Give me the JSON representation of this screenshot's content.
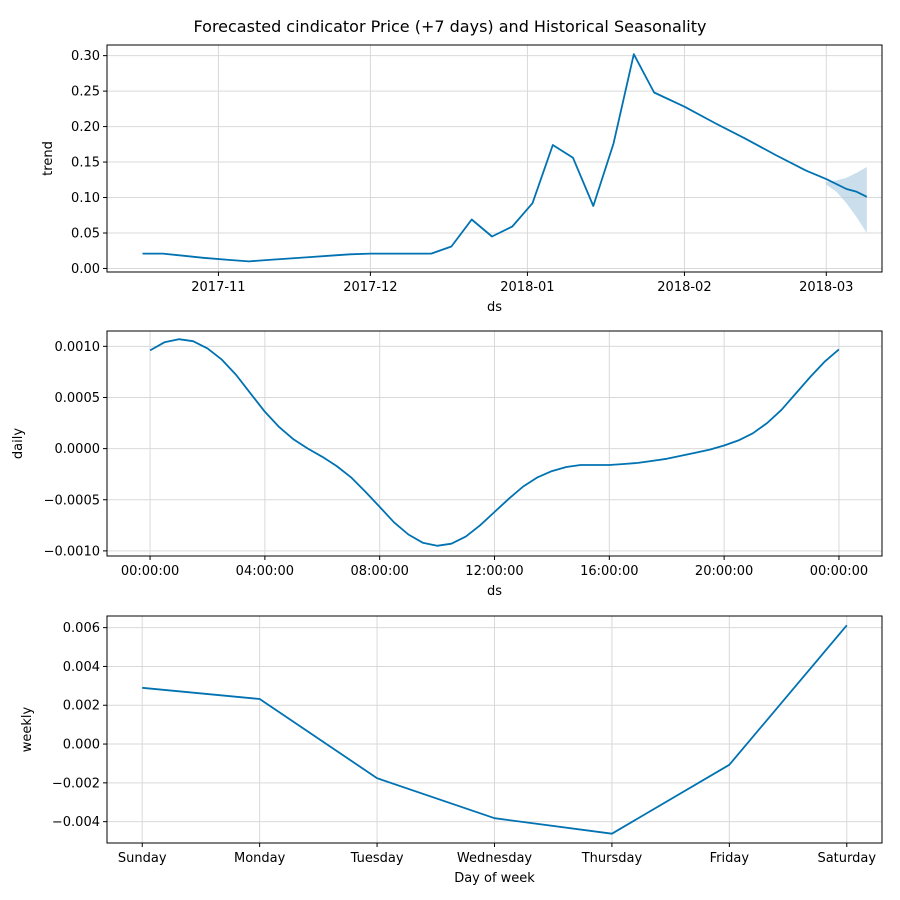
{
  "title": "Forecasted cindicator Price (+7 days) and Historical Seasonality",
  "colors": {
    "series": "#0072b2",
    "band": "#a6c8e0",
    "grid": "#d9d9d9"
  },
  "chart_data": [
    {
      "type": "line",
      "name": "trend",
      "xlabel": "ds",
      "ylabel": "trend",
      "x_type": "date",
      "xlim": [
        "2017-10-10",
        "2018-03-12"
      ],
      "ylim": [
        -0.005,
        0.315
      ],
      "xticks": [
        {
          "x": "2017-11-01",
          "label": "2017-11"
        },
        {
          "x": "2017-12-01",
          "label": "2017-12"
        },
        {
          "x": "2018-01-01",
          "label": "2018-01"
        },
        {
          "x": "2018-02-01",
          "label": "2018-02"
        },
        {
          "x": "2018-03-01",
          "label": "2018-03"
        }
      ],
      "yticks": [
        {
          "y": 0.0,
          "label": "0.00"
        },
        {
          "y": 0.05,
          "label": "0.05"
        },
        {
          "y": 0.1,
          "label": "0.10"
        },
        {
          "y": 0.15,
          "label": "0.15"
        },
        {
          "y": 0.2,
          "label": "0.20"
        },
        {
          "y": 0.25,
          "label": "0.25"
        },
        {
          "y": 0.3,
          "label": "0.30"
        }
      ],
      "grid": true,
      "x": [
        "2017-10-17",
        "2017-10-21",
        "2017-10-25",
        "2017-10-29",
        "2017-11-03",
        "2017-11-07",
        "2017-11-11",
        "2017-11-15",
        "2017-11-19",
        "2017-11-23",
        "2017-11-27",
        "2017-12-01",
        "2017-12-05",
        "2017-12-09",
        "2017-12-13",
        "2017-12-17",
        "2017-12-21",
        "2017-12-25",
        "2017-12-29",
        "2018-01-02",
        "2018-01-06",
        "2018-01-10",
        "2018-01-14",
        "2018-01-18",
        "2018-01-22",
        "2018-01-26",
        "2018-02-01",
        "2018-02-07",
        "2018-02-13",
        "2018-02-19",
        "2018-02-25",
        "2018-03-01",
        "2018-03-05",
        "2018-03-07",
        "2018-03-09"
      ],
      "values": [
        0.021,
        0.021,
        0.018,
        0.015,
        0.012,
        0.01,
        0.012,
        0.014,
        0.016,
        0.018,
        0.02,
        0.021,
        0.021,
        0.021,
        0.021,
        0.031,
        0.069,
        0.045,
        0.059,
        0.092,
        0.174,
        0.156,
        0.088,
        0.176,
        0.302,
        0.248,
        0.228,
        0.205,
        0.183,
        0.16,
        0.138,
        0.126,
        0.112,
        0.108,
        0.101
      ],
      "uncertainty": {
        "x": [
          "2018-03-01",
          "2018-03-03",
          "2018-03-05",
          "2018-03-07",
          "2018-03-09"
        ],
        "upper": [
          0.122,
          0.124,
          0.128,
          0.135,
          0.143
        ],
        "lower": [
          0.118,
          0.108,
          0.092,
          0.072,
          0.05
        ]
      }
    },
    {
      "type": "line",
      "name": "daily",
      "xlabel": "ds",
      "ylabel": "daily",
      "x_type": "hours",
      "xlim": [
        -1.5,
        25.5
      ],
      "ylim": [
        -0.00105,
        0.00115
      ],
      "xticks": [
        {
          "x": 0,
          "label": "00:00:00"
        },
        {
          "x": 4,
          "label": "04:00:00"
        },
        {
          "x": 8,
          "label": "08:00:00"
        },
        {
          "x": 12,
          "label": "12:00:00"
        },
        {
          "x": 16,
          "label": "16:00:00"
        },
        {
          "x": 20,
          "label": "20:00:00"
        },
        {
          "x": 24,
          "label": "00:00:00"
        }
      ],
      "yticks": [
        {
          "y": -0.001,
          "label": "−0.0010"
        },
        {
          "y": -0.0005,
          "label": "−0.0005"
        },
        {
          "y": 0.0,
          "label": "0.0000"
        },
        {
          "y": 0.0005,
          "label": "0.0005"
        },
        {
          "y": 0.001,
          "label": "0.0010"
        }
      ],
      "grid": true,
      "x": [
        0,
        0.5,
        1,
        1.5,
        2,
        2.5,
        3,
        3.5,
        4,
        4.5,
        5,
        5.5,
        6,
        6.5,
        7,
        7.5,
        8,
        8.5,
        9,
        9.5,
        10,
        10.5,
        11,
        11.5,
        12,
        12.5,
        13,
        13.5,
        14,
        14.5,
        15,
        15.5,
        16,
        16.5,
        17,
        17.5,
        18,
        18.5,
        19,
        19.5,
        20,
        20.5,
        21,
        21.5,
        22,
        22.5,
        23,
        23.5,
        24
      ],
      "values": [
        0.00096,
        0.00104,
        0.00107,
        0.00105,
        0.00098,
        0.00087,
        0.00072,
        0.00054,
        0.00036,
        0.00021,
        9e-05,
        0.0,
        -8e-05,
        -0.00017,
        -0.00028,
        -0.00042,
        -0.00057,
        -0.00072,
        -0.00084,
        -0.00092,
        -0.00095,
        -0.00093,
        -0.00086,
        -0.00075,
        -0.00062,
        -0.00049,
        -0.00037,
        -0.00028,
        -0.00022,
        -0.00018,
        -0.00016,
        -0.00016,
        -0.00016,
        -0.00015,
        -0.00014,
        -0.00012,
        -0.0001,
        -7e-05,
        -4e-05,
        -1e-05,
        3e-05,
        8e-05,
        0.00015,
        0.00025,
        0.00038,
        0.00054,
        0.0007,
        0.00085,
        0.00097
      ]
    },
    {
      "type": "line",
      "name": "weekly",
      "xlabel": "Day of week",
      "ylabel": "weekly",
      "x_type": "category",
      "xlim": [
        -0.3,
        6.3
      ],
      "ylim": [
        -0.0051,
        0.0066
      ],
      "categories": [
        "Sunday",
        "Monday",
        "Tuesday",
        "Wednesday",
        "Thursday",
        "Friday",
        "Saturday"
      ],
      "yticks": [
        {
          "y": -0.004,
          "label": "−0.004"
        },
        {
          "y": -0.002,
          "label": "−0.002"
        },
        {
          "y": 0.0,
          "label": "0.000"
        },
        {
          "y": 0.002,
          "label": "0.002"
        },
        {
          "y": 0.004,
          "label": "0.004"
        },
        {
          "y": 0.006,
          "label": "0.006"
        }
      ],
      "grid": true,
      "values": [
        0.0029,
        0.00232,
        -0.00176,
        -0.00382,
        -0.00462,
        -0.00107,
        0.00612
      ]
    }
  ]
}
